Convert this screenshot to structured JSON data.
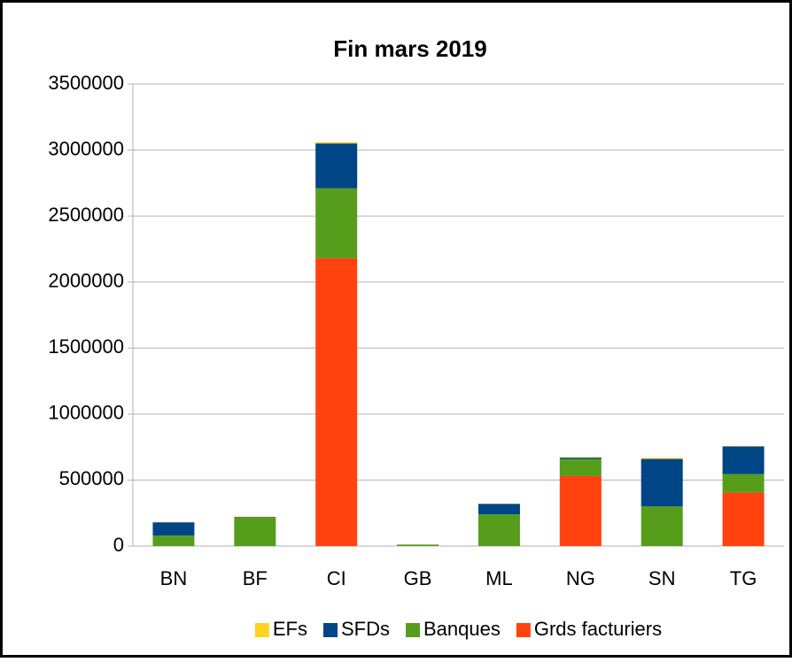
{
  "chart_data": {
    "type": "stacked_bar",
    "title": "Fin mars 2019",
    "categories": [
      "BN",
      "BF",
      "CI",
      "GB",
      "ML",
      "NG",
      "SN",
      "TG"
    ],
    "series": [
      {
        "name": "EFs",
        "color": "#ffd320",
        "values": [
          2000,
          3000,
          10000,
          1000,
          2000,
          3000,
          8000,
          3000
        ]
      },
      {
        "name": "SFDs",
        "color": "#004586",
        "values": [
          100000,
          5000,
          340000,
          1000,
          80000,
          10000,
          360000,
          210000
        ]
      },
      {
        "name": "Banques",
        "color": "#579d1c",
        "values": [
          80000,
          215000,
          530000,
          10000,
          240000,
          130000,
          300000,
          140000
        ]
      },
      {
        "name": "Grds facturiers",
        "color": "#ff420e",
        "values": [
          0,
          0,
          2180000,
          0,
          0,
          530000,
          0,
          405000
        ]
      }
    ],
    "ylim": [
      0,
      3500000
    ],
    "yticks": [
      0,
      500000,
      1000000,
      1500000,
      2000000,
      2500000,
      3000000,
      3500000
    ],
    "grid": true,
    "legend": "bottom"
  }
}
